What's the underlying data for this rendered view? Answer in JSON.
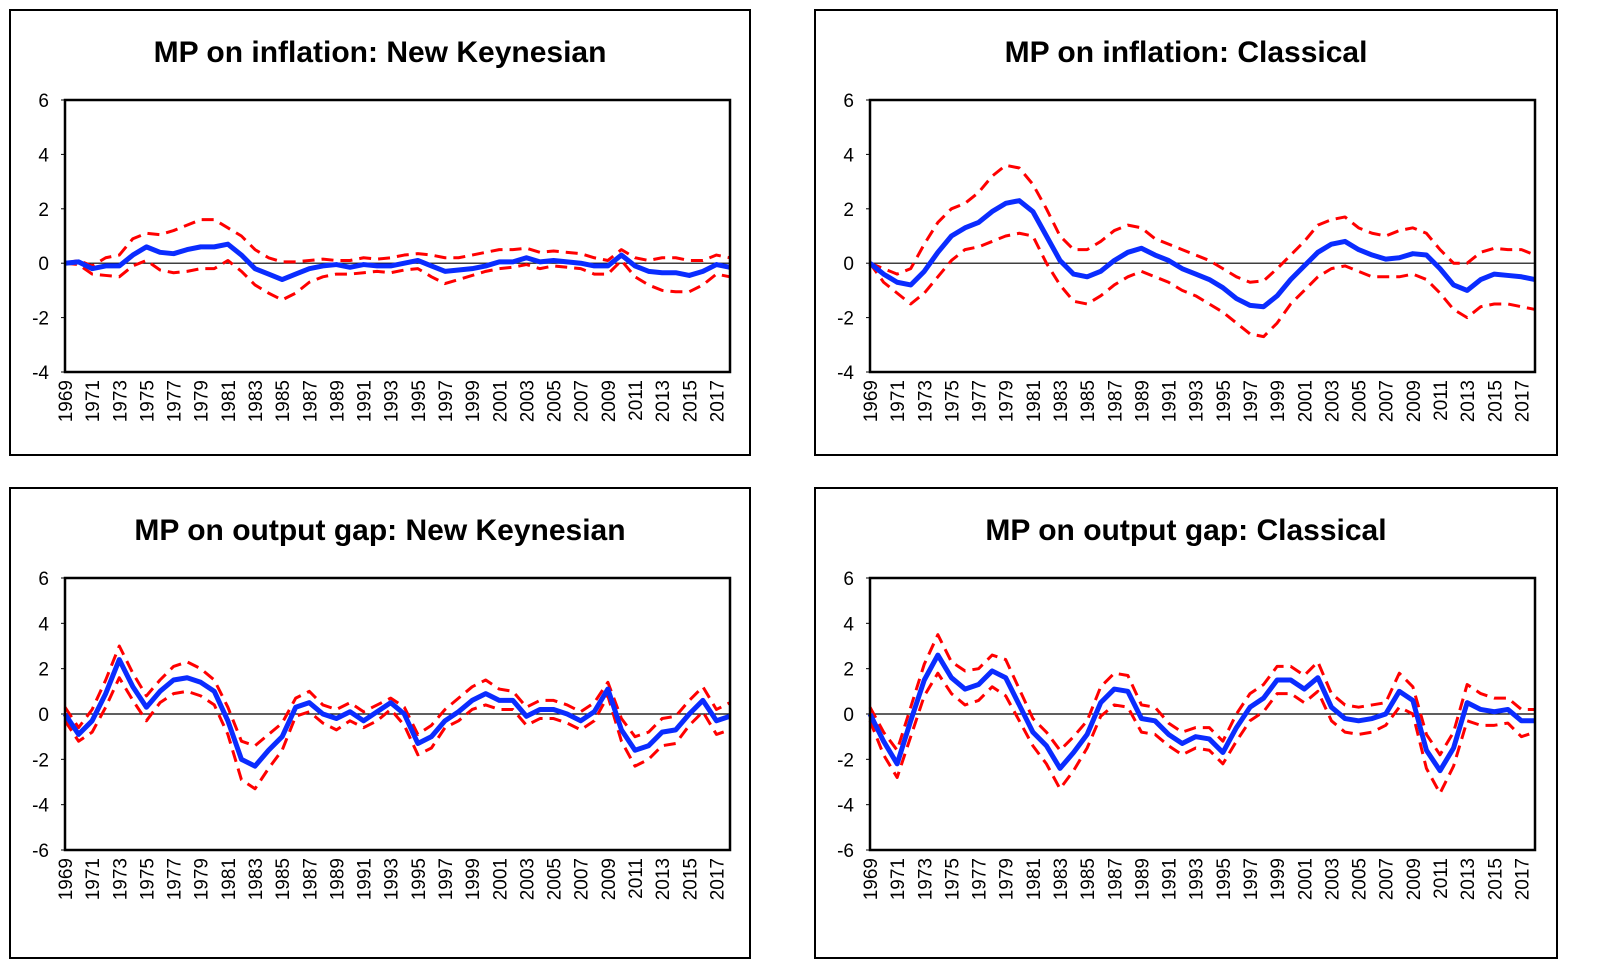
{
  "chart_data": [
    {
      "type": "line",
      "title": "MP on inflation: New Keynesian",
      "x": [
        1969,
        1970,
        1971,
        1972,
        1973,
        1974,
        1975,
        1976,
        1977,
        1978,
        1979,
        1980,
        1981,
        1982,
        1983,
        1984,
        1985,
        1986,
        1987,
        1988,
        1989,
        1990,
        1991,
        1992,
        1993,
        1994,
        1995,
        1996,
        1997,
        1998,
        1999,
        2000,
        2001,
        2002,
        2003,
        2004,
        2005,
        2006,
        2007,
        2008,
        2009,
        2010,
        2011,
        2012,
        2013,
        2014,
        2015,
        2016,
        2017,
        2018
      ],
      "series": [
        {
          "color": "#ff0000",
          "dashed": true,
          "values": [
            0,
            0.1,
            -0.1,
            0.2,
            0.3,
            0.9,
            1.1,
            1.05,
            1.2,
            1.4,
            1.6,
            1.6,
            1.3,
            1.0,
            0.5,
            0.2,
            0.05,
            0.05,
            0.1,
            0.15,
            0.1,
            0.1,
            0.2,
            0.15,
            0.2,
            0.3,
            0.35,
            0.3,
            0.2,
            0.2,
            0.3,
            0.4,
            0.5,
            0.5,
            0.55,
            0.4,
            0.45,
            0.4,
            0.35,
            0.2,
            0.1,
            0.5,
            0.2,
            0.1,
            0.2,
            0.2,
            0.1,
            0.1,
            0.3,
            0.2
          ]
        },
        {
          "color": "#ff0000",
          "dashed": true,
          "values": [
            0,
            -0.05,
            -0.4,
            -0.45,
            -0.5,
            -0.1,
            0.1,
            -0.25,
            -0.35,
            -0.3,
            -0.2,
            -0.2,
            0.1,
            -0.3,
            -0.8,
            -1.1,
            -1.35,
            -1.1,
            -0.7,
            -0.5,
            -0.4,
            -0.4,
            -0.35,
            -0.3,
            -0.35,
            -0.25,
            -0.2,
            -0.5,
            -0.75,
            -0.6,
            -0.45,
            -0.3,
            -0.2,
            -0.15,
            -0.05,
            -0.2,
            -0.1,
            -0.15,
            -0.2,
            -0.4,
            -0.4,
            0.1,
            -0.5,
            -0.8,
            -1.0,
            -1.05,
            -1.05,
            -0.8,
            -0.4,
            -0.5
          ]
        },
        {
          "color": "#0a2cff",
          "dashed": false,
          "values": [
            0,
            0.05,
            -0.2,
            -0.1,
            -0.1,
            0.3,
            0.6,
            0.4,
            0.35,
            0.5,
            0.6,
            0.6,
            0.7,
            0.3,
            -0.2,
            -0.4,
            -0.6,
            -0.4,
            -0.2,
            -0.1,
            -0.05,
            -0.15,
            -0.05,
            -0.1,
            -0.1,
            0,
            0.1,
            -0.1,
            -0.3,
            -0.25,
            -0.2,
            -0.1,
            0.05,
            0.05,
            0.2,
            0.05,
            0.1,
            0.05,
            0,
            -0.1,
            -0.1,
            0.3,
            -0.1,
            -0.3,
            -0.35,
            -0.35,
            -0.45,
            -0.3,
            -0.05,
            -0.15
          ]
        }
      ],
      "xlim": [
        1969,
        2018
      ],
      "xticks": [
        1969,
        1971,
        1973,
        1975,
        1977,
        1979,
        1981,
        1983,
        1985,
        1987,
        1989,
        1991,
        1993,
        1995,
        1997,
        1999,
        2001,
        2003,
        2005,
        2007,
        2009,
        2011,
        2013,
        2015,
        2017
      ],
      "ylim": [
        -4,
        6
      ],
      "yticks": [
        -4,
        -2,
        0,
        2,
        4,
        6
      ]
    },
    {
      "type": "line",
      "title": "MP on inflation: Classical",
      "x": [
        1969,
        1970,
        1971,
        1972,
        1973,
        1974,
        1975,
        1976,
        1977,
        1978,
        1979,
        1980,
        1981,
        1982,
        1983,
        1984,
        1985,
        1986,
        1987,
        1988,
        1989,
        1990,
        1991,
        1992,
        1993,
        1994,
        1995,
        1996,
        1997,
        1998,
        1999,
        2000,
        2001,
        2002,
        2003,
        2004,
        2005,
        2006,
        2007,
        2008,
        2009,
        2010,
        2011,
        2012,
        2013,
        2014,
        2015,
        2016,
        2017,
        2018
      ],
      "series": [
        {
          "color": "#ff0000",
          "dashed": true,
          "values": [
            0,
            -0.2,
            -0.4,
            -0.2,
            0.7,
            1.5,
            2.0,
            2.2,
            2.6,
            3.2,
            3.6,
            3.5,
            2.9,
            2.0,
            1.0,
            0.5,
            0.5,
            0.8,
            1.2,
            1.4,
            1.3,
            0.9,
            0.7,
            0.5,
            0.3,
            0.1,
            -0.2,
            -0.5,
            -0.7,
            -0.65,
            -0.2,
            0.3,
            0.8,
            1.4,
            1.6,
            1.7,
            1.3,
            1.1,
            1.0,
            1.2,
            1.3,
            1.1,
            0.5,
            0.0,
            0.0,
            0.4,
            0.55,
            0.5,
            0.5,
            0.3
          ]
        },
        {
          "color": "#ff0000",
          "dashed": true,
          "values": [
            0,
            -0.7,
            -1.1,
            -1.5,
            -1.1,
            -0.5,
            0.1,
            0.5,
            0.6,
            0.8,
            1.0,
            1.1,
            1.0,
            0.0,
            -0.8,
            -1.4,
            -1.5,
            -1.2,
            -0.8,
            -0.5,
            -0.3,
            -0.5,
            -0.7,
            -1.0,
            -1.2,
            -1.5,
            -1.8,
            -2.2,
            -2.6,
            -2.7,
            -2.2,
            -1.5,
            -1.0,
            -0.5,
            -0.2,
            -0.1,
            -0.3,
            -0.5,
            -0.5,
            -0.5,
            -0.4,
            -0.6,
            -1.1,
            -1.7,
            -2.0,
            -1.6,
            -1.5,
            -1.5,
            -1.6,
            -1.7
          ]
        },
        {
          "color": "#0a2cff",
          "dashed": false,
          "values": [
            0,
            -0.4,
            -0.7,
            -0.8,
            -0.3,
            0.4,
            1.0,
            1.3,
            1.5,
            1.9,
            2.2,
            2.3,
            1.9,
            1.0,
            0.1,
            -0.4,
            -0.5,
            -0.3,
            0.1,
            0.4,
            0.55,
            0.3,
            0.1,
            -0.2,
            -0.4,
            -0.6,
            -0.9,
            -1.3,
            -1.55,
            -1.6,
            -1.2,
            -0.6,
            -0.1,
            0.4,
            0.7,
            0.8,
            0.5,
            0.3,
            0.15,
            0.2,
            0.35,
            0.3,
            -0.2,
            -0.8,
            -1.0,
            -0.6,
            -0.4,
            -0.45,
            -0.5,
            -0.6
          ]
        }
      ],
      "xlim": [
        1969,
        2018
      ],
      "xticks": [
        1969,
        1971,
        1973,
        1975,
        1977,
        1979,
        1981,
        1983,
        1985,
        1987,
        1989,
        1991,
        1993,
        1995,
        1997,
        1999,
        2001,
        2003,
        2005,
        2007,
        2009,
        2011,
        2013,
        2015,
        2017
      ],
      "ylim": [
        -4,
        6
      ],
      "yticks": [
        -4,
        -2,
        0,
        2,
        4,
        6
      ]
    },
    {
      "type": "line",
      "title": "MP on output gap: New Keynesian",
      "x": [
        1969,
        1970,
        1971,
        1972,
        1973,
        1974,
        1975,
        1976,
        1977,
        1978,
        1979,
        1980,
        1981,
        1982,
        1983,
        1984,
        1985,
        1986,
        1987,
        1988,
        1989,
        1990,
        1991,
        1992,
        1993,
        1994,
        1995,
        1996,
        1997,
        1998,
        1999,
        2000,
        2001,
        2002,
        2003,
        2004,
        2005,
        2006,
        2007,
        2008,
        2009,
        2010,
        2011,
        2012,
        2013,
        2014,
        2015,
        2016,
        2017,
        2018
      ],
      "series": [
        {
          "color": "#ff0000",
          "dashed": true,
          "values": [
            0.3,
            -0.6,
            0.2,
            1.5,
            3.0,
            1.8,
            0.8,
            1.5,
            2.1,
            2.3,
            2.0,
            1.5,
            0.3,
            -1.2,
            -1.4,
            -0.9,
            -0.4,
            0.7,
            1.0,
            0.4,
            0.2,
            0.5,
            0.1,
            0.4,
            0.7,
            0.3,
            -0.9,
            -0.5,
            0.2,
            0.7,
            1.2,
            1.5,
            1.1,
            1.0,
            0.3,
            0.6,
            0.6,
            0.4,
            0.1,
            0.5,
            1.4,
            -0.2,
            -1.0,
            -0.8,
            -0.2,
            -0.1,
            0.6,
            1.2,
            0.2,
            0.5
          ]
        },
        {
          "color": "#ff0000",
          "dashed": true,
          "values": [
            -0.3,
            -1.2,
            -0.8,
            0.3,
            1.6,
            0.6,
            -0.3,
            0.5,
            0.9,
            1.0,
            0.8,
            0.4,
            -0.9,
            -2.9,
            -3.3,
            -2.4,
            -1.6,
            -0.1,
            0.1,
            -0.4,
            -0.7,
            -0.3,
            -0.6,
            -0.3,
            0.2,
            -0.5,
            -1.8,
            -1.5,
            -0.6,
            -0.3,
            0.2,
            0.4,
            0.2,
            0.2,
            -0.5,
            -0.2,
            -0.2,
            -0.4,
            -0.7,
            -0.3,
            0.8,
            -1.2,
            -2.3,
            -2.0,
            -1.4,
            -1.3,
            -0.5,
            0.1,
            -0.9,
            -0.7
          ]
        },
        {
          "color": "#0a2cff",
          "dashed": false,
          "values": [
            0,
            -0.9,
            -0.3,
            0.9,
            2.4,
            1.2,
            0.3,
            1.0,
            1.5,
            1.6,
            1.4,
            1.0,
            -0.3,
            -2.0,
            -2.3,
            -1.6,
            -1.0,
            0.3,
            0.5,
            0.0,
            -0.2,
            0.1,
            -0.3,
            0.1,
            0.5,
            0.0,
            -1.3,
            -1.0,
            -0.3,
            0.1,
            0.6,
            0.9,
            0.6,
            0.6,
            -0.1,
            0.2,
            0.2,
            0.0,
            -0.3,
            0.1,
            1.1,
            -0.7,
            -1.6,
            -1.4,
            -0.8,
            -0.7,
            0.0,
            0.6,
            -0.3,
            -0.1
          ]
        }
      ],
      "xlim": [
        1969,
        2018
      ],
      "xticks": [
        1969,
        1971,
        1973,
        1975,
        1977,
        1979,
        1981,
        1983,
        1985,
        1987,
        1989,
        1991,
        1993,
        1995,
        1997,
        1999,
        2001,
        2003,
        2005,
        2007,
        2009,
        2011,
        2013,
        2015,
        2017
      ],
      "ylim": [
        -6,
        6
      ],
      "yticks": [
        -6,
        -4,
        -2,
        0,
        2,
        4,
        6
      ]
    },
    {
      "type": "line",
      "title": "MP on output gap: Classical",
      "x": [
        1969,
        1970,
        1971,
        1972,
        1973,
        1974,
        1975,
        1976,
        1977,
        1978,
        1979,
        1980,
        1981,
        1982,
        1983,
        1984,
        1985,
        1986,
        1987,
        1988,
        1989,
        1990,
        1991,
        1992,
        1993,
        1994,
        1995,
        1996,
        1997,
        1998,
        1999,
        2000,
        2001,
        2002,
        2003,
        2004,
        2005,
        2006,
        2007,
        2008,
        2009,
        2010,
        2011,
        2012,
        2013,
        2014,
        2015,
        2016,
        2017,
        2018
      ],
      "series": [
        {
          "color": "#ff0000",
          "dashed": true,
          "values": [
            0.3,
            -0.8,
            -1.6,
            0.3,
            2.2,
            3.5,
            2.3,
            1.9,
            2.0,
            2.6,
            2.4,
            1.1,
            -0.2,
            -0.8,
            -1.6,
            -1.0,
            -0.3,
            1.2,
            1.8,
            1.7,
            0.4,
            0.3,
            -0.4,
            -0.8,
            -0.6,
            -0.6,
            -1.2,
            0.0,
            0.9,
            1.3,
            2.1,
            2.1,
            1.7,
            2.3,
            0.9,
            0.4,
            0.3,
            0.4,
            0.5,
            1.8,
            1.2,
            -0.9,
            -1.8,
            -0.8,
            1.3,
            0.9,
            0.7,
            0.7,
            0.2,
            0.2
          ]
        },
        {
          "color": "#ff0000",
          "dashed": true,
          "values": [
            -0.3,
            -1.8,
            -2.8,
            -1.0,
            0.8,
            1.8,
            0.9,
            0.4,
            0.6,
            1.2,
            0.8,
            -0.3,
            -1.4,
            -2.2,
            -3.3,
            -2.5,
            -1.5,
            -0.1,
            0.4,
            0.3,
            -0.8,
            -0.9,
            -1.4,
            -1.8,
            -1.5,
            -1.6,
            -2.2,
            -1.2,
            -0.3,
            0.1,
            0.9,
            0.9,
            0.5,
            1.0,
            -0.3,
            -0.8,
            -0.9,
            -0.8,
            -0.5,
            0.3,
            0.0,
            -2.4,
            -3.5,
            -2.3,
            -0.3,
            -0.5,
            -0.5,
            -0.4,
            -1.0,
            -0.8
          ]
        },
        {
          "color": "#0a2cff",
          "dashed": false,
          "values": [
            0,
            -1.2,
            -2.2,
            -0.3,
            1.5,
            2.6,
            1.6,
            1.1,
            1.3,
            1.9,
            1.6,
            0.4,
            -0.8,
            -1.4,
            -2.4,
            -1.7,
            -0.9,
            0.5,
            1.1,
            1.0,
            -0.2,
            -0.3,
            -0.9,
            -1.3,
            -1.0,
            -1.1,
            -1.7,
            -0.6,
            0.3,
            0.7,
            1.5,
            1.5,
            1.1,
            1.6,
            0.3,
            -0.2,
            -0.3,
            -0.2,
            0.0,
            1.0,
            0.6,
            -1.6,
            -2.5,
            -1.5,
            0.5,
            0.2,
            0.1,
            0.2,
            -0.3,
            -0.3
          ]
        }
      ],
      "xlim": [
        1969,
        2018
      ],
      "xticks": [
        1969,
        1971,
        1973,
        1975,
        1977,
        1979,
        1981,
        1983,
        1985,
        1987,
        1989,
        1991,
        1993,
        1995,
        1997,
        1999,
        2001,
        2003,
        2005,
        2007,
        2009,
        2011,
        2013,
        2015,
        2017
      ],
      "ylim": [
        -6,
        6
      ],
      "yticks": [
        -6,
        -4,
        -2,
        0,
        2,
        4,
        6
      ]
    }
  ]
}
